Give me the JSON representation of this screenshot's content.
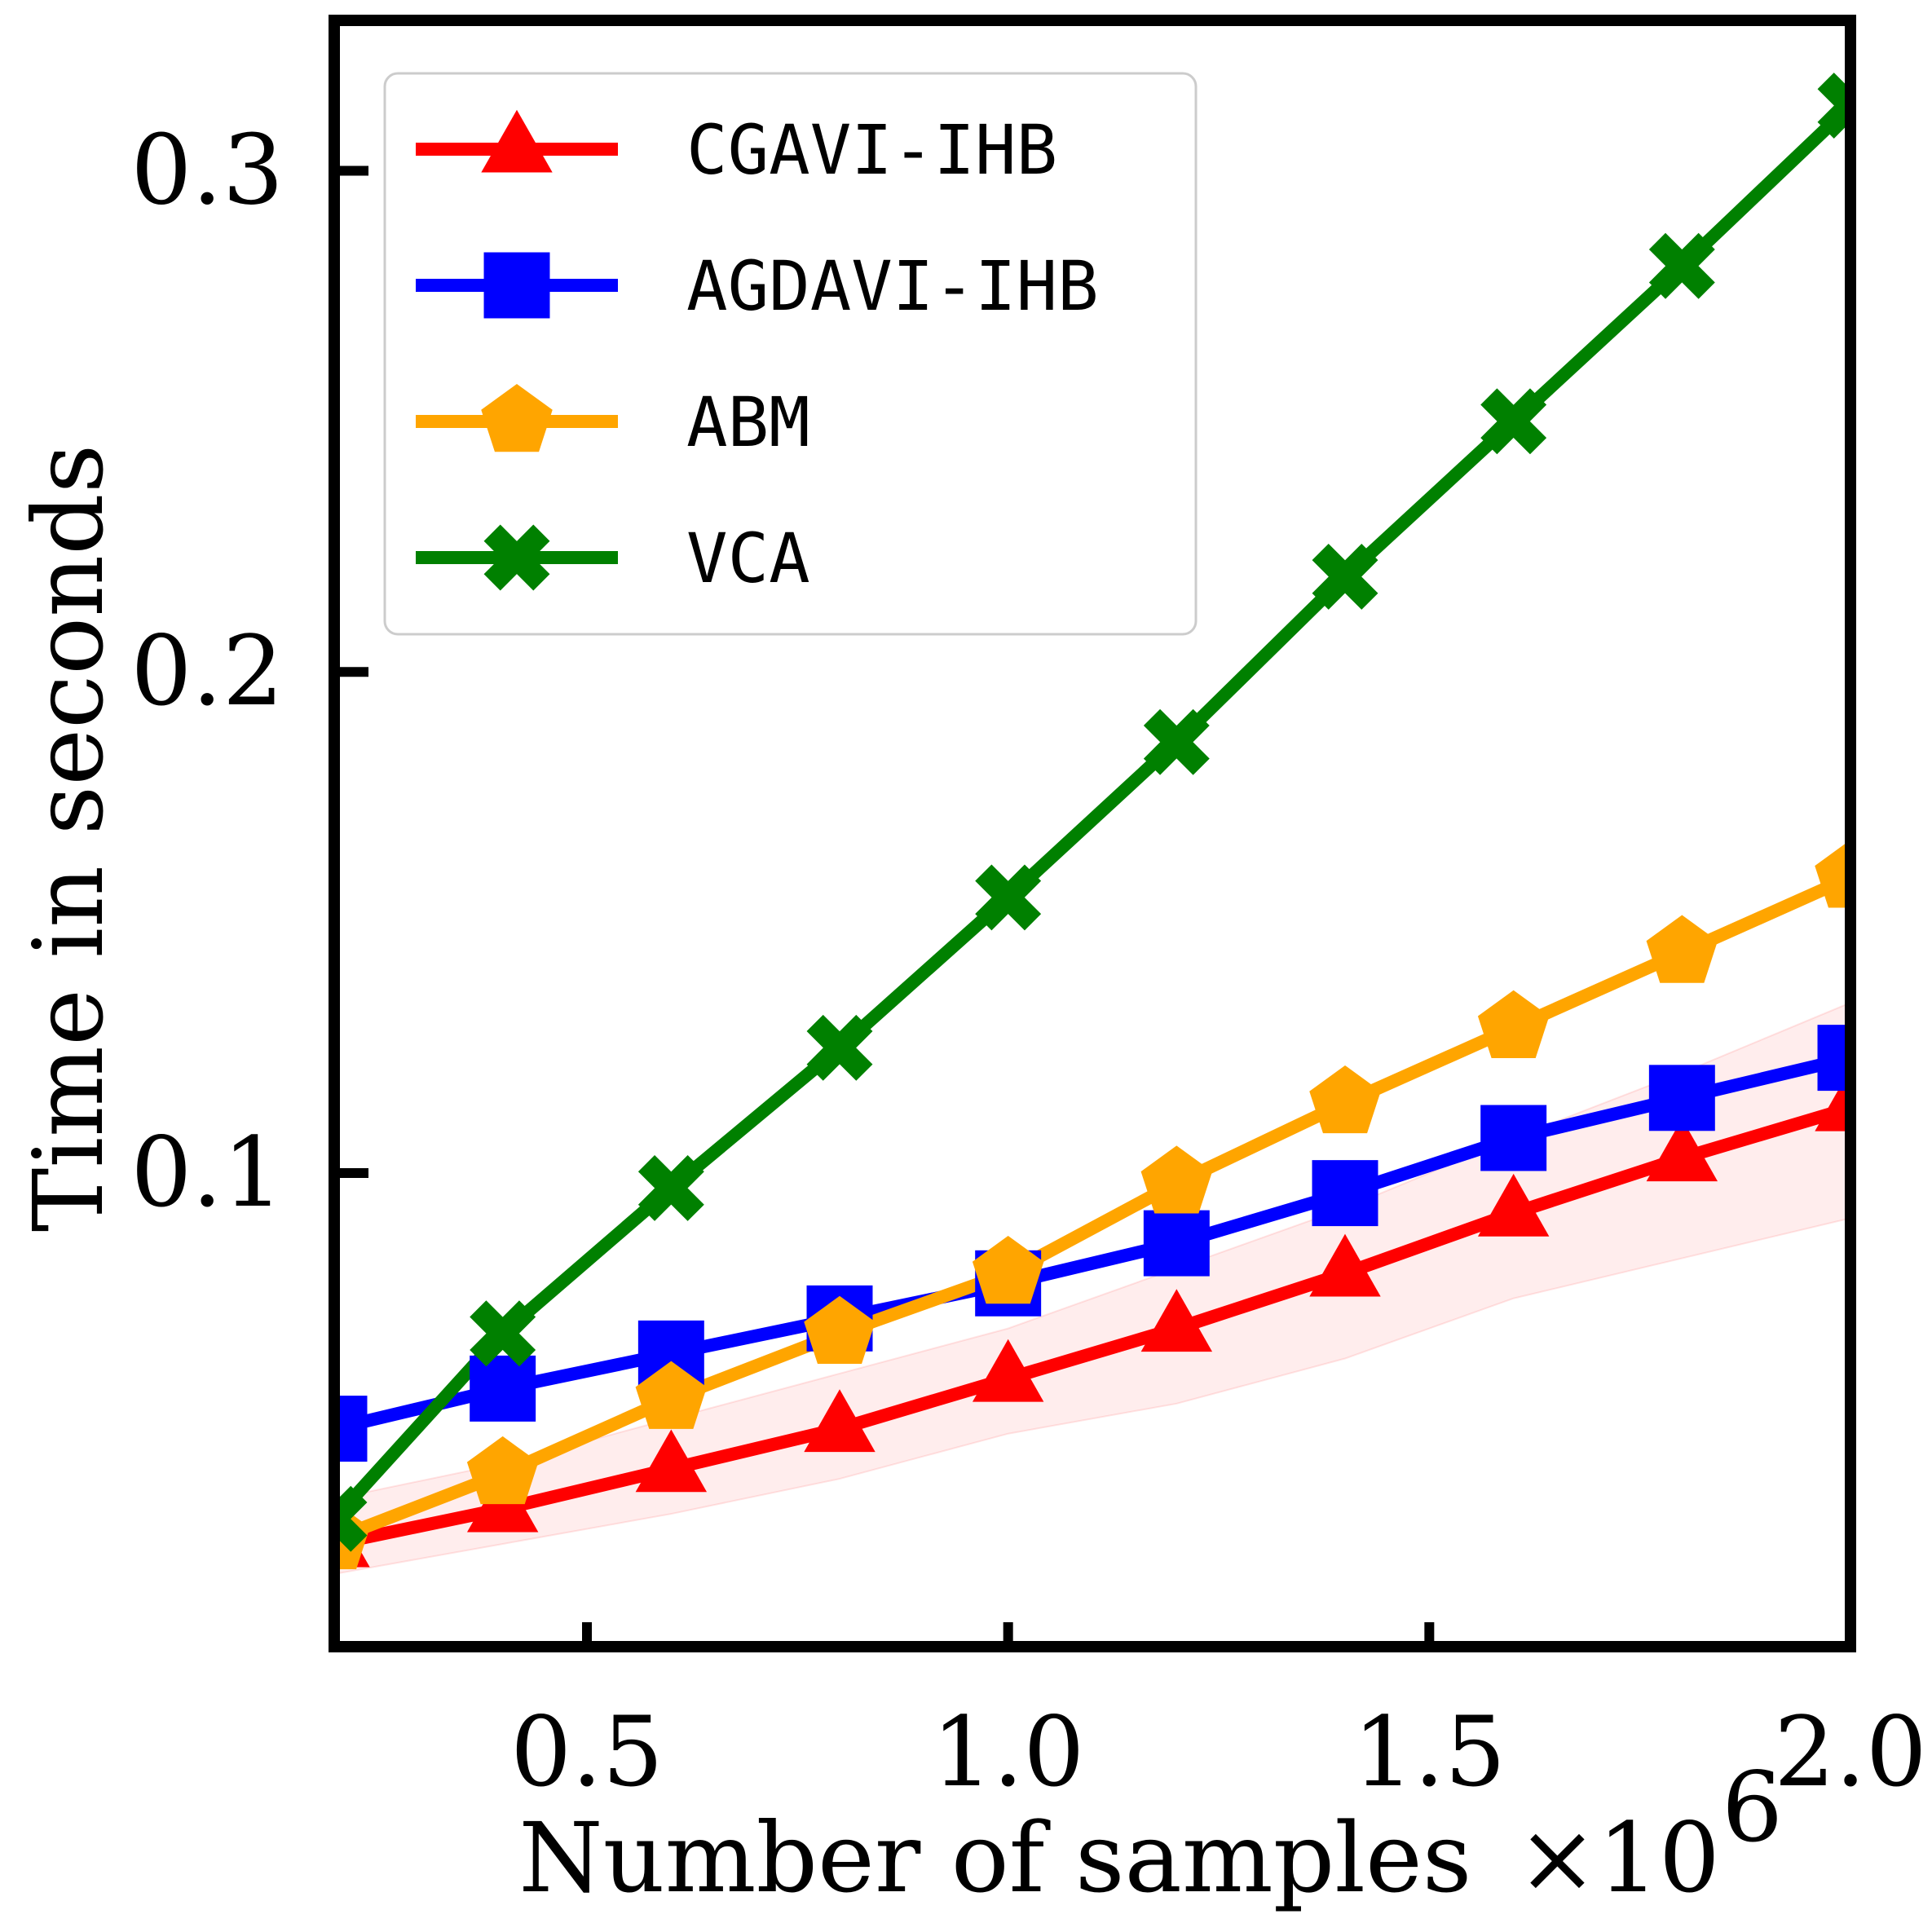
{
  "chart_data": {
    "type": "line",
    "xlabel": "Number of samples",
    "xlabel_multiplier": "×10",
    "xlabel_exponent": "6",
    "ylabel": "Time in seconds",
    "xlim": [
      0.2,
      2.0
    ],
    "ylim": [
      0.0055,
      0.33
    ],
    "y_scale": "linear",
    "grid": false,
    "legend_position": "top-left",
    "x_ticks": [
      0.5,
      1.0,
      1.5,
      2.0
    ],
    "x_tick_labels": [
      "0.5",
      "1.0",
      "1.5",
      "2.0"
    ],
    "y_ticks": [
      0.1,
      0.2,
      0.3
    ],
    "y_tick_labels": [
      "0.1",
      "0.2",
      "0.3"
    ],
    "x": [
      0.2,
      0.4,
      0.6,
      0.8,
      1.0,
      1.2,
      1.4,
      1.6,
      1.8,
      2.0
    ],
    "series": [
      {
        "name": "CGAVI-IHB",
        "color": "#ff0000",
        "marker": "triangle",
        "values": [
          0.026,
          0.033,
          0.041,
          0.049,
          0.059,
          0.069,
          0.08,
          0.092,
          0.103,
          0.113
        ],
        "band_low": [
          0.02,
          0.026,
          0.032,
          0.039,
          0.048,
          0.054,
          0.063,
          0.075,
          0.083,
          0.091
        ],
        "band_high": [
          0.035,
          0.042,
          0.051,
          0.06,
          0.069,
          0.081,
          0.093,
          0.107,
          0.12,
          0.134
        ]
      },
      {
        "name": "AGDAVI-IHB",
        "color": "#0000ff",
        "marker": "square",
        "values": [
          0.049,
          0.057,
          0.064,
          0.071,
          0.078,
          0.086,
          0.096,
          0.107,
          0.115,
          0.123
        ]
      },
      {
        "name": "ABM",
        "color": "#ffa500",
        "marker": "pentagon",
        "values": [
          0.027,
          0.04,
          0.055,
          0.068,
          0.08,
          0.098,
          0.114,
          0.129,
          0.144,
          0.159
        ]
      },
      {
        "name": "VCA",
        "color": "#008000",
        "marker": "x",
        "values": [
          0.031,
          0.068,
          0.097,
          0.125,
          0.155,
          0.186,
          0.219,
          0.25,
          0.281,
          0.313
        ]
      }
    ]
  }
}
